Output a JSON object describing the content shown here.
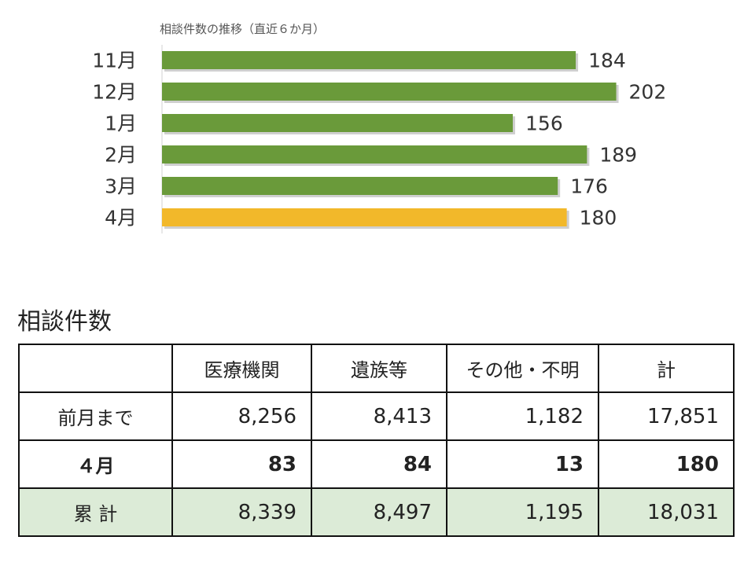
{
  "chart_data": {
    "type": "bar",
    "orientation": "horizontal",
    "title": "相談件数の推移（直近６か月）",
    "categories": [
      "11月",
      "12月",
      "1月",
      "2月",
      "3月",
      "4月"
    ],
    "values": [
      184,
      202,
      156,
      189,
      176,
      180
    ],
    "colors": [
      "#6a9a3a",
      "#6a9a3a",
      "#6a9a3a",
      "#6a9a3a",
      "#6a9a3a",
      "#f2b82a"
    ],
    "xlim": [
      0,
      220
    ],
    "grid": false
  },
  "section": {
    "title": "相談件数"
  },
  "table": {
    "headers": [
      "",
      "医療機関",
      "遺族等",
      "その他・不明",
      "計"
    ],
    "rows": [
      {
        "label": "前月まで",
        "cells": [
          "8,256",
          "8,413",
          "1,182",
          "17,851"
        ]
      },
      {
        "label": "４月",
        "cells": [
          "83",
          "84",
          "13",
          "180"
        ]
      },
      {
        "label": "累 計",
        "cells": [
          "8,339",
          "8,497",
          "1,195",
          "18,031"
        ]
      }
    ]
  }
}
